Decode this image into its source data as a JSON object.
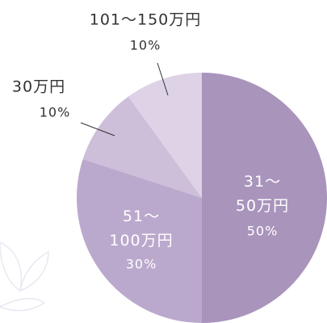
{
  "chart_data": {
    "type": "pie",
    "categories": [
      "31～50万円",
      "51～100万円",
      "30万円",
      "101～150万円"
    ],
    "values": [
      50,
      30,
      10,
      10
    ],
    "value_labels": [
      "50%",
      "30%",
      "10%",
      "10%"
    ],
    "colors": [
      "#a994bc",
      "#bba9cd",
      "#cdbed9",
      "#ddd2e6"
    ]
  }
}
